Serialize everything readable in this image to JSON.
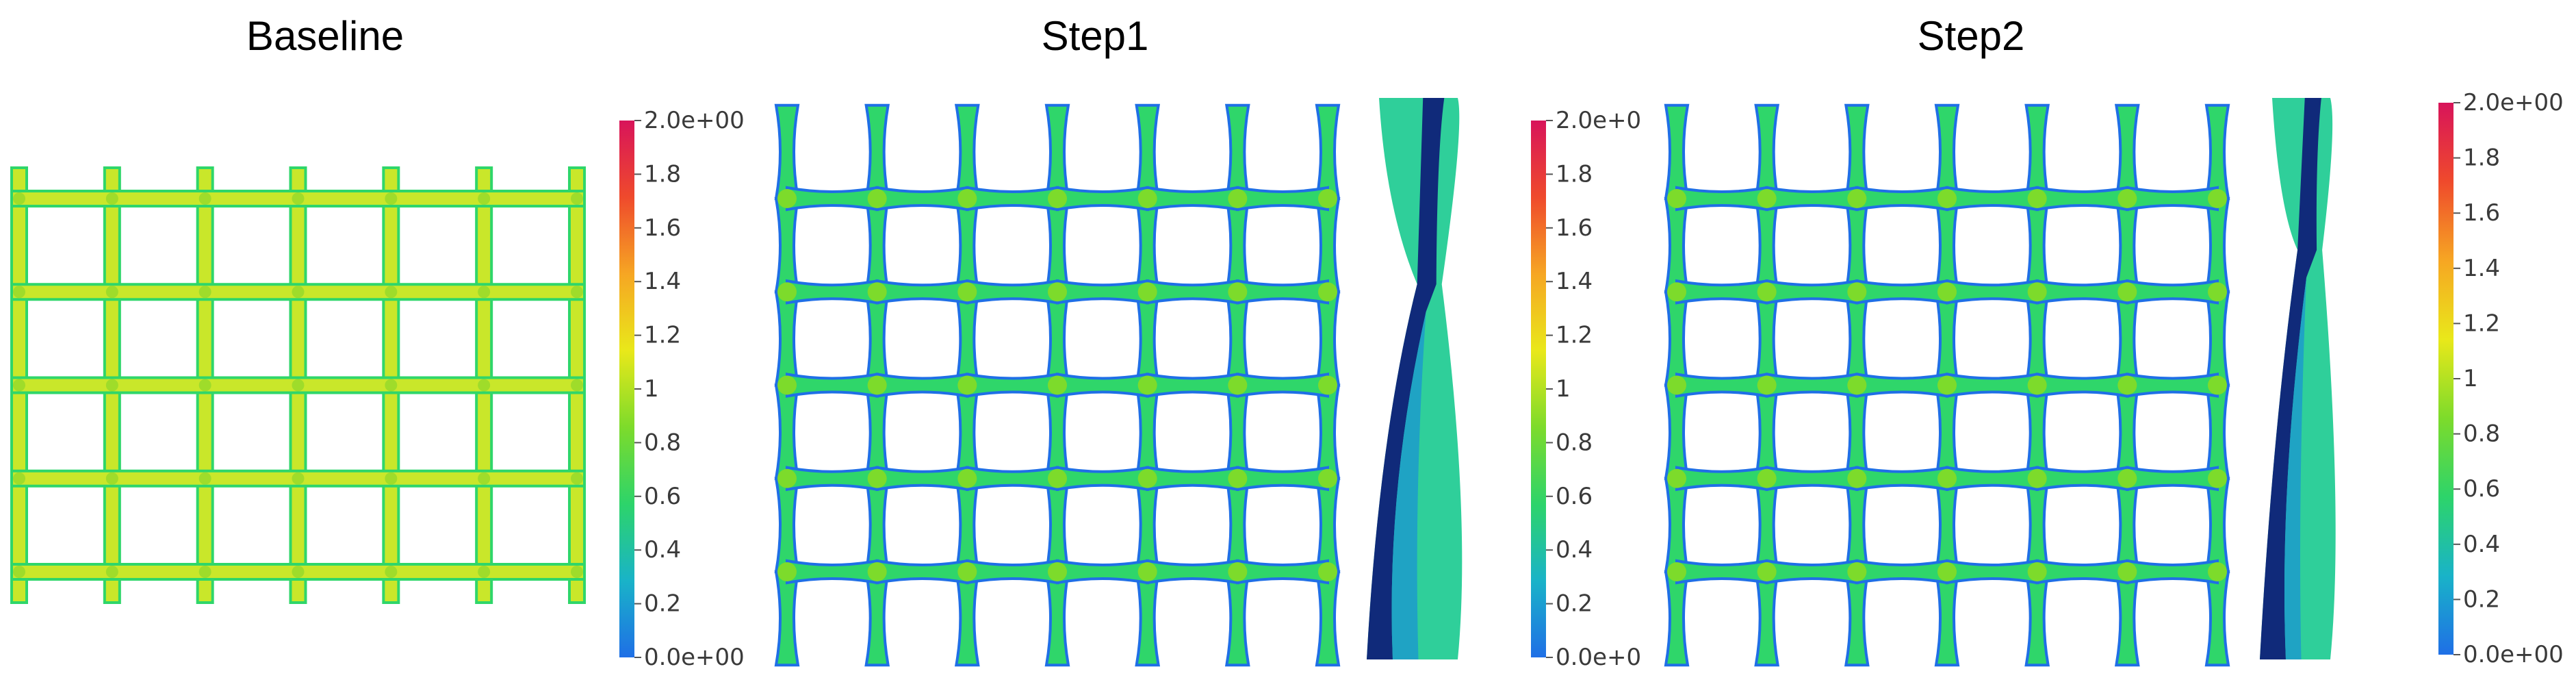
{
  "panels": [
    {
      "id": "baseline",
      "title": "Baseline",
      "colorbar_ticks": [
        "2.0e+00",
        "1.8",
        "1.6",
        "1.4",
        "1.2",
        "1",
        "0.8",
        "0.6",
        "0.4",
        "0.2",
        "0.0e+00"
      ],
      "has_side_view": false
    },
    {
      "id": "step1",
      "title": "Step1",
      "colorbar_ticks": [
        "2.0e+0",
        "1.8",
        "1.6",
        "1.4",
        "1.2",
        "1",
        "0.8",
        "0.6",
        "0.4",
        "0.2",
        "0.0e+0"
      ],
      "has_side_view": true
    },
    {
      "id": "step2",
      "title": "Step2",
      "colorbar_ticks": [
        "2.0e+00",
        "1.8",
        "1.6",
        "1.4",
        "1.2",
        "1",
        "0.8",
        "0.6",
        "0.4",
        "0.2",
        "0.0e+00"
      ],
      "has_side_view": true
    }
  ],
  "colormap": [
    "#1f6fe6",
    "#19b3c8",
    "#2dd46a",
    "#7ddb2b",
    "#e9e81a",
    "#f6a623",
    "#ef4a2c",
    "#d8145a"
  ],
  "colors": {
    "baseline_lattice": "#c9e72a",
    "step_lattice": "#2fd66a",
    "lattice_edge": "#1f6fe6",
    "side_dark": "#102a7a",
    "side_mid": "#1fa3c4",
    "side_light": "#2fcf9a"
  }
}
